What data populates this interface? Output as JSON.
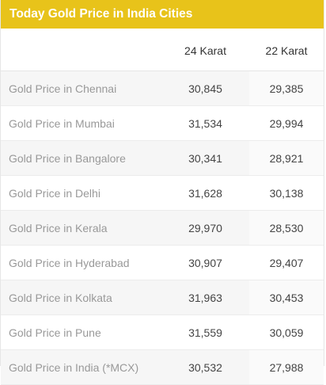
{
  "widget": {
    "title": "Today Gold Price in India Cities",
    "accent_color": "#e8c31a"
  },
  "table": {
    "headers": [
      "",
      "24 Karat",
      "22 Karat"
    ],
    "rows": [
      {
        "city": "Gold Price in Chennai",
        "k24": "30,845",
        "k22": "29,385"
      },
      {
        "city": "Gold Price in Mumbai",
        "k24": "31,534",
        "k22": "29,994"
      },
      {
        "city": "Gold Price in Bangalore",
        "k24": "30,341",
        "k22": "28,921"
      },
      {
        "city": "Gold Price in Delhi",
        "k24": "31,628",
        "k22": "30,138"
      },
      {
        "city": "Gold Price in Kerala",
        "k24": "29,970",
        "k22": "28,530"
      },
      {
        "city": "Gold Price in Hyderabad",
        "k24": "30,907",
        "k22": "29,407"
      },
      {
        "city": "Gold Price in Kolkata",
        "k24": "31,963",
        "k22": "30,453"
      },
      {
        "city": "Gold Price in Pune",
        "k24": "31,559",
        "k22": "30,059"
      },
      {
        "city": "Gold Price in India (*MCX)",
        "k24": "30,532",
        "k22": "27,988"
      }
    ]
  }
}
